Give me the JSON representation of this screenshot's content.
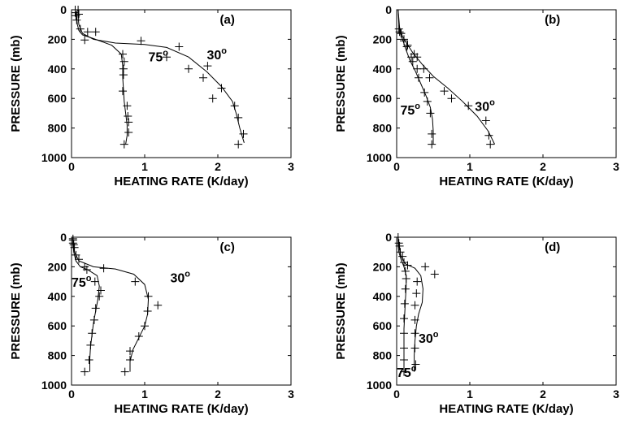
{
  "chart_data": [
    {
      "type": "line",
      "panel_label": "(a)",
      "xlabel": "HEATING RATE (K/day)",
      "ylabel": "PRESSURE (mb)",
      "xlim": [
        0,
        3
      ],
      "ylim": [
        1000,
        0
      ],
      "xticks": [
        "0",
        "1",
        "2",
        "3"
      ],
      "yticks": [
        "0",
        "200",
        "400",
        "600",
        "800",
        "1000"
      ],
      "annotations": [
        {
          "text": "75",
          "degree": "o",
          "x": 1.05,
          "p": 350
        },
        {
          "text": "30",
          "degree": "o",
          "x": 1.85,
          "p": 335
        }
      ],
      "series": [
        {
          "style": "line",
          "x": [
            0.08,
            0.07,
            0.07,
            0.08,
            0.1,
            0.15,
            0.3,
            0.55,
            0.68,
            0.7,
            0.7,
            0.71,
            0.72,
            0.74,
            0.76,
            0.76,
            0.74
          ],
          "p": [
            0,
            20,
            50,
            100,
            140,
            170,
            195,
            240,
            300,
            380,
            460,
            540,
            620,
            700,
            780,
            850,
            910
          ]
        },
        {
          "style": "markers",
          "x": [
            0.05,
            0.05,
            0.06,
            0.07,
            0.12,
            0.22,
            0.18,
            0.7,
            0.72,
            0.71,
            0.71,
            0.7,
            0.76,
            0.77,
            0.78,
            0.78,
            0.72
          ],
          "p": [
            0,
            20,
            40,
            70,
            130,
            150,
            205,
            300,
            350,
            400,
            440,
            550,
            650,
            720,
            760,
            830,
            910
          ]
        },
        {
          "style": "line",
          "x": [
            0.1,
            0.09,
            0.09,
            0.1,
            0.15,
            0.3,
            0.6,
            1.0,
            1.3,
            1.6,
            1.85,
            2.05,
            2.2,
            2.25,
            2.3,
            2.36
          ],
          "p": [
            0,
            20,
            50,
            100,
            160,
            200,
            225,
            235,
            255,
            320,
            420,
            520,
            620,
            700,
            800,
            900
          ]
        },
        {
          "style": "markers",
          "x": [
            0.09,
            0.1,
            0.33,
            0.95,
            1.47,
            1.3,
            1.6,
            1.86,
            1.8,
            2.05,
            1.93,
            2.23,
            2.28,
            2.35,
            2.28
          ],
          "p": [
            0,
            30,
            150,
            210,
            250,
            320,
            400,
            380,
            460,
            530,
            600,
            650,
            730,
            840,
            910
          ]
        }
      ]
    },
    {
      "type": "line",
      "panel_label": "(b)",
      "xlabel": "HEATING RATE (K/day)",
      "ylabel": "PRESSURE (mb)",
      "xlim": [
        0,
        3
      ],
      "ylim": [
        1000,
        0
      ],
      "xticks": [
        "0",
        "1",
        "2",
        "3"
      ],
      "yticks": [
        "0",
        "200",
        "400",
        "600",
        "800",
        "1000"
      ],
      "annotations": [
        {
          "text": "75",
          "degree": "o",
          "x": 0.05,
          "p": 710
        },
        {
          "text": "30",
          "degree": "o",
          "x": 1.07,
          "p": 685
        }
      ],
      "series": [
        {
          "style": "line",
          "x": [
            0.02,
            0.03,
            0.05,
            0.08,
            0.12,
            0.18,
            0.26,
            0.33,
            0.4,
            0.46,
            0.49,
            0.5,
            0.5
          ],
          "p": [
            0,
            100,
            160,
            200,
            260,
            340,
            420,
            500,
            580,
            660,
            740,
            820,
            910
          ]
        },
        {
          "style": "markers",
          "x": [
            0.03,
            0.06,
            0.1,
            0.14,
            0.2,
            0.22,
            0.28,
            0.3,
            0.38,
            0.42,
            0.46,
            0.48,
            0.48
          ],
          "p": [
            130,
            160,
            200,
            250,
            320,
            350,
            400,
            460,
            560,
            620,
            700,
            840,
            910
          ]
        },
        {
          "style": "line",
          "x": [
            0.02,
            0.04,
            0.08,
            0.14,
            0.22,
            0.35,
            0.5,
            0.7,
            0.9,
            1.1,
            1.25,
            1.34
          ],
          "p": [
            0,
            120,
            180,
            230,
            290,
            370,
            450,
            530,
            620,
            720,
            820,
            910
          ]
        },
        {
          "style": "markers",
          "x": [
            0.04,
            0.06,
            0.1,
            0.15,
            0.24,
            0.28,
            0.37,
            0.45,
            0.65,
            0.75,
            0.98,
            1.22,
            1.26,
            1.28
          ],
          "p": [
            150,
            160,
            210,
            240,
            300,
            320,
            400,
            460,
            550,
            600,
            650,
            750,
            850,
            910
          ]
        }
      ]
    },
    {
      "type": "line",
      "panel_label": "(c)",
      "xlabel": "HEATING RATE (K/day)",
      "ylabel": "PRESSURE (mb)",
      "xlim": [
        0,
        3
      ],
      "ylim": [
        1000,
        0
      ],
      "xticks": [
        "0",
        "1",
        "2",
        "3"
      ],
      "yticks": [
        "0",
        "200",
        "400",
        "600",
        "800",
        "1000"
      ],
      "annotations": [
        {
          "text": "75",
          "degree": "o",
          "x": 0.0,
          "p": 335
        },
        {
          "text": "30",
          "degree": "o",
          "x": 1.35,
          "p": 305
        }
      ],
      "series": [
        {
          "style": "line",
          "x": [
            0.02,
            0.02,
            0.03,
            0.06,
            0.12,
            0.22,
            0.35,
            0.38,
            0.36,
            0.33,
            0.3,
            0.28,
            0.26,
            0.25,
            0.25
          ],
          "p": [
            0,
            40,
            100,
            160,
            200,
            220,
            260,
            330,
            420,
            500,
            580,
            660,
            740,
            820,
            910
          ]
        },
        {
          "style": "markers",
          "x": [
            0.02,
            0.02,
            0.04,
            0.1,
            0.18,
            0.21,
            0.32,
            0.4,
            0.38,
            0.33,
            0.31,
            0.28,
            0.26,
            0.24,
            0.18
          ],
          "p": [
            10,
            40,
            70,
            150,
            200,
            220,
            300,
            360,
            400,
            480,
            560,
            650,
            730,
            830,
            910
          ]
        },
        {
          "style": "line",
          "x": [
            0.02,
            0.02,
            0.04,
            0.1,
            0.3,
            0.6,
            0.85,
            1.0,
            1.05,
            1.04,
            1.0,
            0.92,
            0.84,
            0.8,
            0.8
          ],
          "p": [
            0,
            40,
            100,
            160,
            200,
            215,
            250,
            320,
            420,
            520,
            600,
            680,
            760,
            840,
            910
          ]
        },
        {
          "style": "markers",
          "x": [
            0.02,
            0.03,
            0.06,
            0.44,
            0.87,
            1.05,
            1.18,
            1.04,
            1.0,
            0.92,
            0.8,
            0.8,
            0.73
          ],
          "p": [
            20,
            50,
            120,
            210,
            300,
            400,
            460,
            500,
            600,
            670,
            770,
            830,
            910
          ]
        }
      ]
    },
    {
      "type": "line",
      "panel_label": "(d)",
      "xlabel": "HEATING RATE (K/day)",
      "ylabel": "PRESSURE (mb)",
      "xlim": [
        0,
        3
      ],
      "ylim": [
        1000,
        0
      ],
      "xticks": [
        "0",
        "1",
        "2",
        "3"
      ],
      "yticks": [
        "0",
        "200",
        "400",
        "600",
        "800",
        "1000"
      ],
      "annotations": [
        {
          "text": "30",
          "degree": "o",
          "x": 0.3,
          "p": 715
        },
        {
          "text": "75",
          "degree": "o",
          "x": 0.0,
          "p": 945
        }
      ],
      "series": [
        {
          "style": "line",
          "x": [
            0.02,
            0.02,
            0.03,
            0.06,
            0.1,
            0.13,
            0.13,
            0.12,
            0.11,
            0.1,
            0.1,
            0.1,
            0.1
          ],
          "p": [
            0,
            40,
            100,
            150,
            200,
            260,
            330,
            420,
            520,
            620,
            720,
            820,
            920
          ]
        },
        {
          "style": "markers",
          "x": [
            0.02,
            0.03,
            0.05,
            0.1,
            0.12,
            0.13,
            0.12,
            0.11,
            0.1,
            0.1,
            0.1,
            0.1,
            0.1
          ],
          "p": [
            0,
            40,
            100,
            170,
            230,
            280,
            350,
            450,
            550,
            650,
            750,
            830,
            910
          ]
        },
        {
          "style": "line",
          "x": [
            0.02,
            0.03,
            0.06,
            0.12,
            0.25,
            0.33,
            0.36,
            0.35,
            0.3,
            0.27,
            0.25,
            0.24,
            0.24
          ],
          "p": [
            0,
            60,
            130,
            180,
            210,
            260,
            350,
            440,
            520,
            600,
            700,
            800,
            910
          ]
        },
        {
          "style": "markers",
          "x": [
            0.04,
            0.08,
            0.15,
            0.39,
            0.52,
            0.28,
            0.27,
            0.25,
            0.25,
            0.25,
            0.25,
            0.26
          ],
          "p": [
            60,
            130,
            190,
            200,
            250,
            300,
            380,
            460,
            560,
            650,
            750,
            860
          ]
        }
      ]
    }
  ]
}
